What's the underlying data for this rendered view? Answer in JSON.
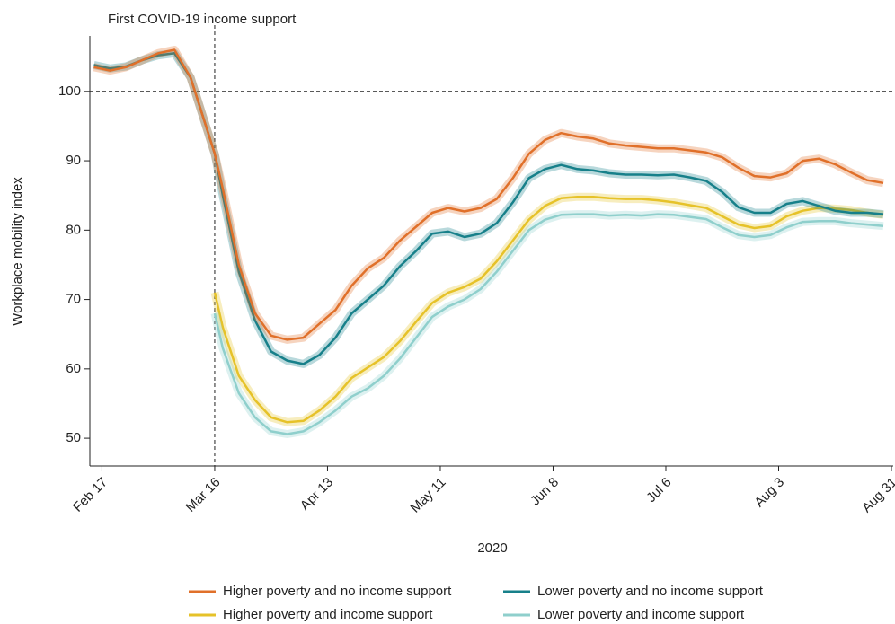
{
  "chart_data": {
    "type": "line",
    "annotation": "First COVID-19 income support",
    "reference_x": "2020-03-16",
    "reference_y": 100,
    "x_label": "2020",
    "y_label": "Workplace mobility index",
    "x": [
      "2020-02-15",
      "2020-02-19",
      "2020-02-23",
      "2020-02-27",
      "2020-03-02",
      "2020-03-06",
      "2020-03-10",
      "2020-03-16",
      "2020-03-18",
      "2020-03-22",
      "2020-03-26",
      "2020-03-30",
      "2020-04-03",
      "2020-04-07",
      "2020-04-11",
      "2020-04-15",
      "2020-04-19",
      "2020-04-23",
      "2020-04-27",
      "2020-05-01",
      "2020-05-05",
      "2020-05-09",
      "2020-05-13",
      "2020-05-17",
      "2020-05-21",
      "2020-05-25",
      "2020-05-29",
      "2020-06-02",
      "2020-06-06",
      "2020-06-10",
      "2020-06-14",
      "2020-06-18",
      "2020-06-22",
      "2020-06-26",
      "2020-06-30",
      "2020-07-04",
      "2020-07-08",
      "2020-07-12",
      "2020-07-16",
      "2020-07-20",
      "2020-07-24",
      "2020-07-28",
      "2020-08-01",
      "2020-08-05",
      "2020-08-09",
      "2020-08-13",
      "2020-08-17",
      "2020-08-21",
      "2020-08-25",
      "2020-08-29"
    ],
    "series": [
      {
        "name": "Higher poverty and no income support",
        "color": "#e0702a",
        "values": [
          103.5,
          103,
          103.5,
          104.5,
          105.5,
          106,
          102,
          91,
          86,
          75,
          68,
          64.8,
          64.2,
          64.5,
          66.5,
          68.5,
          72,
          74.5,
          76,
          78.5,
          80.5,
          82.5,
          83.2,
          82.7,
          83.2,
          84.5,
          87.5,
          91,
          93,
          94,
          93.5,
          93.2,
          92.5,
          92.2,
          92,
          91.8,
          91.8,
          91.5,
          91.2,
          90.5,
          89,
          87.8,
          87.6,
          88.2,
          90,
          90.3,
          89.5,
          88.3,
          87.2,
          86.8
        ]
      },
      {
        "name": "Higher poverty and income support",
        "color": "#e6c229",
        "values": [
          null,
          null,
          null,
          null,
          null,
          null,
          null,
          71,
          66,
          59,
          55.5,
          53,
          52.3,
          52.5,
          54,
          56,
          58.7,
          60.2,
          61.7,
          64,
          66.8,
          69.5,
          71,
          71.8,
          73,
          75.5,
          78.5,
          81.5,
          83.5,
          84.6,
          84.8,
          84.8,
          84.6,
          84.5,
          84.5,
          84.3,
          84,
          83.6,
          83.2,
          82,
          80.8,
          80.3,
          80.6,
          82,
          82.8,
          83.2,
          83.1,
          82.9,
          82.5,
          82.2
        ]
      },
      {
        "name": "Lower poverty and no income support",
        "color": "#17808a",
        "values": [
          103.8,
          103.3,
          103.6,
          104.5,
          105.2,
          105.5,
          102,
          91,
          85,
          74,
          67,
          62.5,
          61.2,
          60.7,
          62,
          64.5,
          68,
          70,
          72,
          74.8,
          77,
          79.5,
          79.8,
          79,
          79.5,
          81,
          84,
          87.5,
          88.8,
          89.4,
          88.8,
          88.6,
          88.2,
          88,
          88,
          87.9,
          88,
          87.6,
          87.1,
          85.5,
          83.3,
          82.5,
          82.5,
          83.8,
          84.2,
          83.5,
          82.8,
          82.5,
          82.5,
          82.3
        ]
      },
      {
        "name": "Lower poverty and income support",
        "color": "#8fcfcc",
        "values": [
          null,
          null,
          null,
          null,
          null,
          null,
          null,
          68,
          63,
          56.5,
          53,
          51,
          50.6,
          51,
          52.3,
          54,
          56,
          57.2,
          59,
          61.5,
          64.5,
          67.5,
          69,
          70,
          71.5,
          74,
          77,
          80,
          81.5,
          82.2,
          82.3,
          82.3,
          82.1,
          82.2,
          82.1,
          82.3,
          82.2,
          81.9,
          81.6,
          80.4,
          79.3,
          79,
          79.3,
          80.4,
          81.2,
          81.3,
          81.3,
          81,
          80.8,
          80.6
        ]
      }
    ],
    "xlim": [
      "2020-02-14",
      "2020-08-31"
    ],
    "xticks": [
      {
        "value": "2020-02-17",
        "label": "Feb 17"
      },
      {
        "value": "2020-03-16",
        "label": "Mar 16"
      },
      {
        "value": "2020-04-13",
        "label": "Apr 13"
      },
      {
        "value": "2020-05-11",
        "label": "May 11"
      },
      {
        "value": "2020-06-08",
        "label": "Jun 8"
      },
      {
        "value": "2020-07-06",
        "label": "Jul 6"
      },
      {
        "value": "2020-08-03",
        "label": "Aug 3"
      },
      {
        "value": "2020-08-31",
        "label": "Aug 31"
      }
    ],
    "ylim": [
      46,
      108
    ],
    "yticks": [
      50,
      60,
      70,
      80,
      90,
      100
    ]
  }
}
